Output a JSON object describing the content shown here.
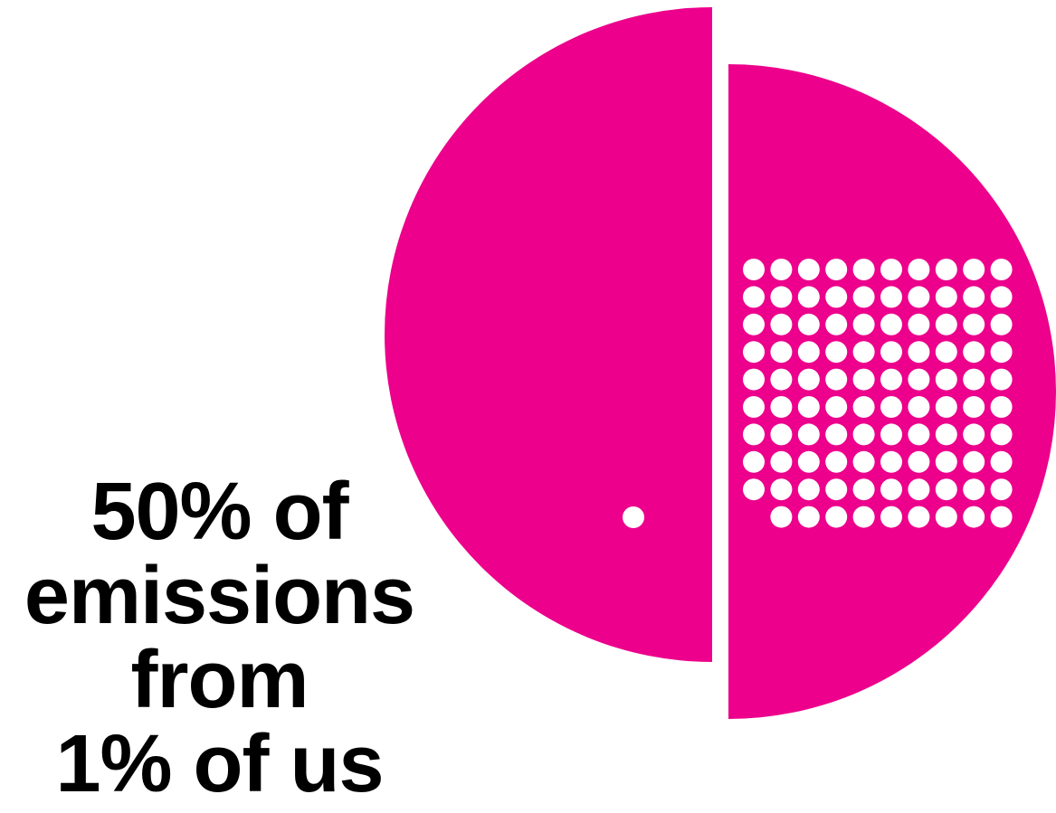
{
  "colors": {
    "accent": "#EC008C",
    "dot": "#FFFFFF",
    "text": "#000000"
  },
  "headline": {
    "line1": "50% of",
    "line2": "emissions",
    "line3": "from",
    "line4": "1% of us"
  },
  "chart_data": {
    "type": "pie",
    "slices": [
      {
        "share_of_emissions_percent": 50,
        "share_of_people_percent": 1,
        "dots": 1
      },
      {
        "share_of_emissions_percent": 50,
        "share_of_people_percent": 99,
        "dots": 99
      }
    ],
    "dot_grid": {
      "rows": 10,
      "columns": 10
    }
  }
}
